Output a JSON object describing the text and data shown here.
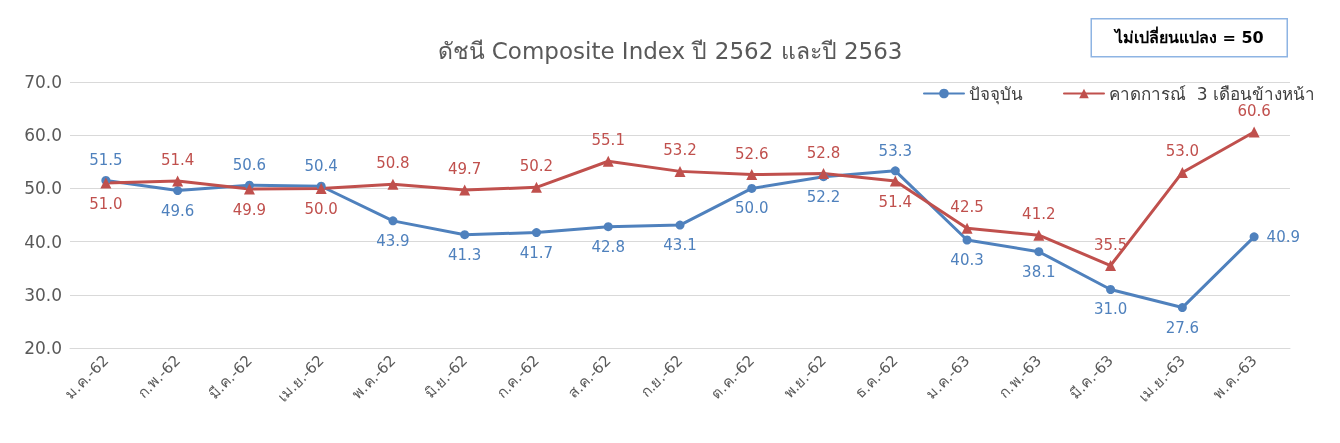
{
  "chart_data": {
    "type": "line",
    "title": "ดัชนี Composite Index ปี 2562 และปี 2563",
    "categories": [
      "ม.ค.-62",
      "ก.พ.-62",
      "มี.ค.-62",
      "เม.ย.-62",
      "พ.ค.-62",
      "มิ.ย.-62",
      "ก.ค.-62",
      "ส.ค.-62",
      "ก.ย.-62",
      "ต.ค.-62",
      "พ.ย.-62",
      "ธ.ค.-62",
      "ม.ค.-63",
      "ก.พ.-63",
      "มี.ค.-63",
      "เม.ย.-63",
      "พ.ค.-63"
    ],
    "series": [
      {
        "name": "ปัจจุบัน",
        "color": "#4f81bd",
        "marker": "circle",
        "values": [
          51.5,
          49.6,
          50.6,
          50.4,
          43.9,
          41.3,
          41.7,
          42.8,
          43.1,
          50.0,
          52.2,
          53.3,
          40.3,
          38.1,
          31.0,
          27.6,
          40.9
        ],
        "value_labels": [
          "51.5",
          "49.6",
          "50.6",
          "50.4",
          "43.9",
          "41.3",
          "41.7",
          "42.8",
          "43.1",
          "50.0",
          "52.2",
          "53.3",
          "40.3",
          "38.1",
          "31.0",
          "27.6",
          "40.9"
        ]
      },
      {
        "name": "คาดการณ์  3 เดือนข้างหน้า",
        "color": "#c0504d",
        "marker": "triangle",
        "values": [
          51.0,
          51.4,
          49.9,
          50.0,
          50.8,
          49.7,
          50.2,
          55.1,
          53.2,
          52.6,
          52.8,
          51.4,
          42.5,
          41.2,
          35.5,
          53.0,
          60.6
        ],
        "value_labels": [
          "51.0",
          "51.4",
          "49.9",
          "50.0",
          "50.8",
          "49.7",
          "50.2",
          "55.1",
          "53.2",
          "52.6",
          "52.8",
          "51.4",
          "42.5",
          "41.2",
          "35.5",
          "53.0",
          "60.6"
        ]
      }
    ],
    "ylim": [
      20,
      70
    ],
    "yticks": [
      {
        "value": 20,
        "label": "20.0"
      },
      {
        "value": 30,
        "label": "30.0"
      },
      {
        "value": 40,
        "label": "40.0"
      },
      {
        "value": 50,
        "label": "50.0"
      },
      {
        "value": 60,
        "label": "60.0"
      },
      {
        "value": 70,
        "label": "70.0"
      }
    ],
    "grid": "y",
    "legend": "top right",
    "line_style": "solid",
    "annotations": [
      "ไม่เปลี่ยนแปลง = 50"
    ]
  }
}
